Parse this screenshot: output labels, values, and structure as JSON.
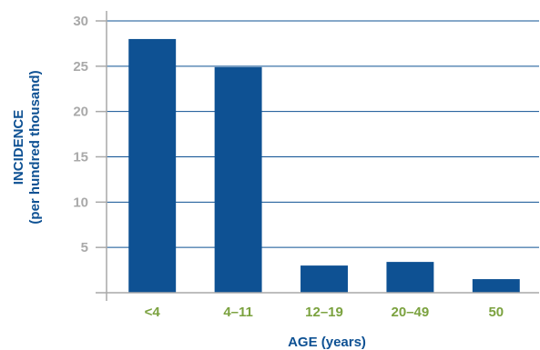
{
  "chart_data": {
    "type": "bar",
    "categories": [
      "<4",
      "4–11",
      "12–19",
      "20–49",
      "50"
    ],
    "values": [
      28.0,
      24.9,
      3.0,
      3.4,
      1.5
    ],
    "xlabel": "AGE (years)",
    "ylabel_line1": "INCIDENCE",
    "ylabel_line2": "(per hundred thousand)",
    "ylim": [
      0,
      30
    ],
    "yticks": [
      "30",
      "25",
      "20",
      "15",
      "10",
      "5"
    ],
    "grid": true,
    "colors": {
      "bar": "#0e5193",
      "grid": "#0e5193",
      "axis": "#a9a9a9",
      "tick_label": "#a9a9a9",
      "category_label": "#7ba23f",
      "axis_title": "#0e5193"
    }
  }
}
